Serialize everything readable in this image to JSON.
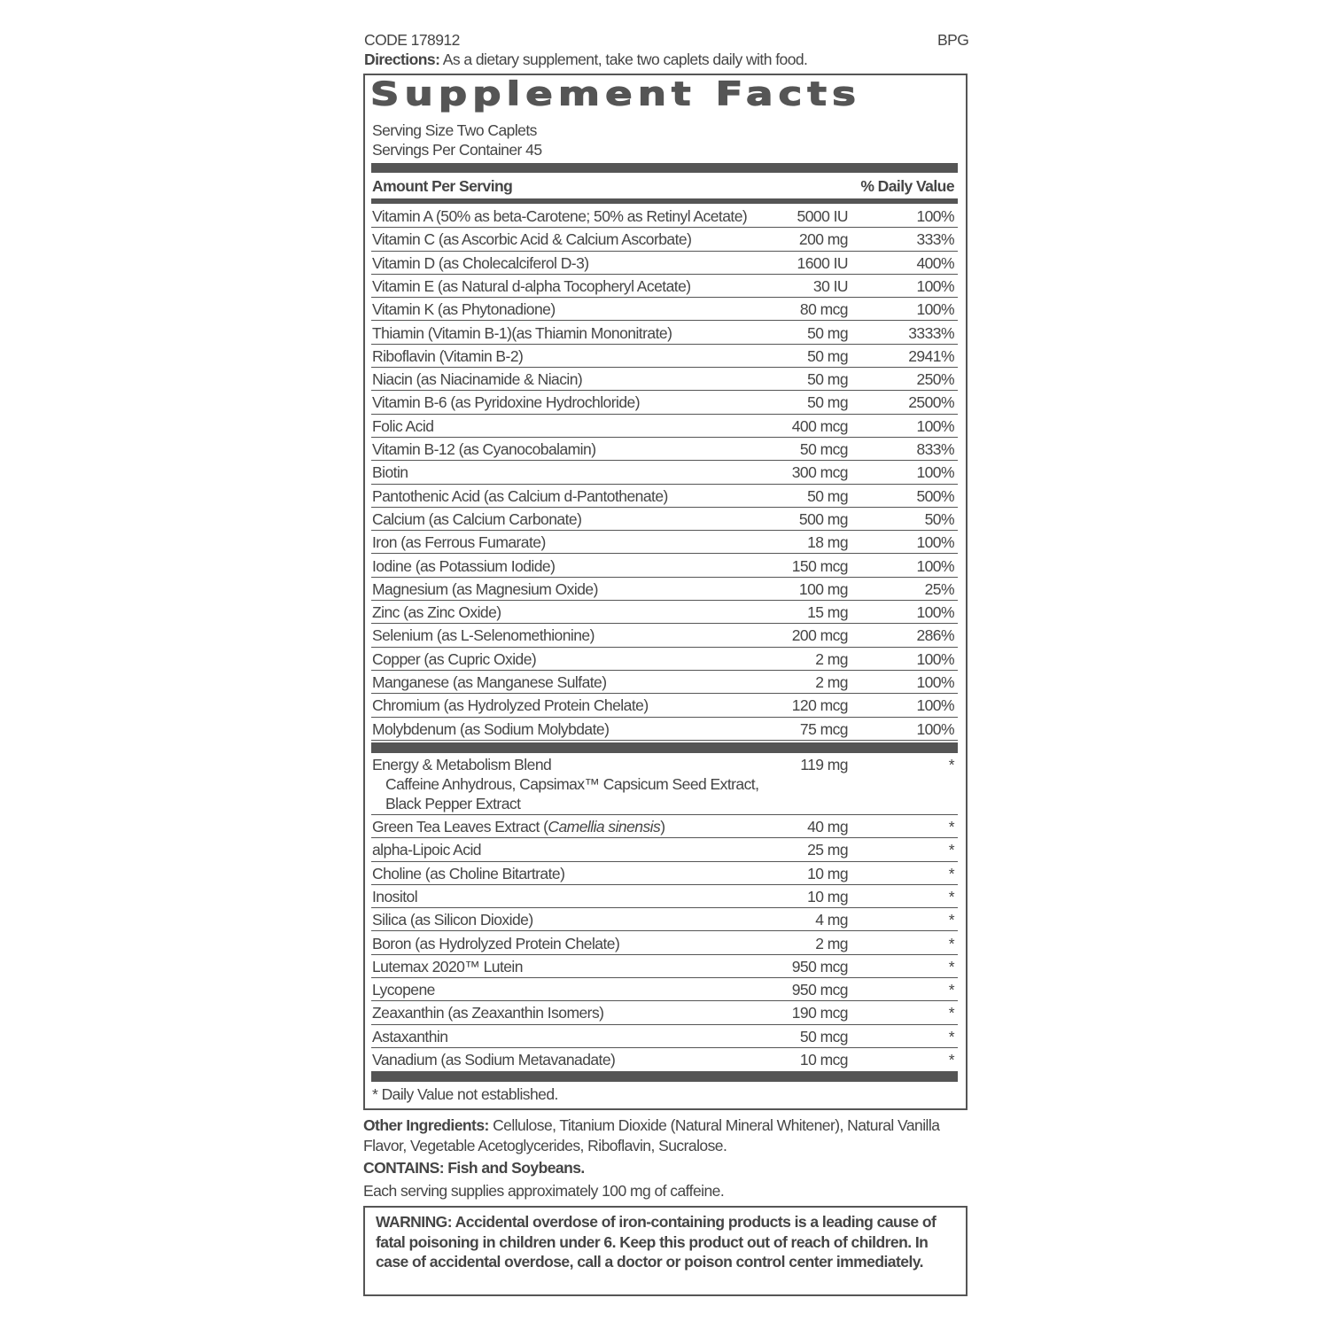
{
  "header": {
    "code": "CODE 178912",
    "brand_code": "BPG",
    "directions_label": "Directions:",
    "directions": " As a dietary supplement, take two caplets daily with food."
  },
  "facts": {
    "title": "Supplement Facts",
    "serving_size": "Serving Size Two Caplets",
    "servings_per_container": "Servings Per Container 45",
    "col_amount": "Amount Per Serving",
    "col_dv": "% Daily Value",
    "vitamins": [
      {
        "name": "Vitamin A (50% as beta-Carotene; 50% as Retinyl Acetate)",
        "amount": "5000 IU",
        "dv": "100%"
      },
      {
        "name": "Vitamin C (as Ascorbic Acid & Calcium Ascorbate)",
        "amount": "200 mg",
        "dv": "333%"
      },
      {
        "name": "Vitamin D (as Cholecalciferol D-3)",
        "amount": "1600 IU",
        "dv": "400%"
      },
      {
        "name": "Vitamin E (as Natural d-alpha Tocopheryl Acetate)",
        "amount": "30 IU",
        "dv": "100%"
      },
      {
        "name": "Vitamin K (as Phytonadione)",
        "amount": "80 mcg",
        "dv": "100%"
      },
      {
        "name": "Thiamin (Vitamin B-1)(as Thiamin Mononitrate)",
        "amount": "50 mg",
        "dv": "3333%"
      },
      {
        "name": "Riboflavin (Vitamin B-2)",
        "amount": "50 mg",
        "dv": "2941%"
      },
      {
        "name": "Niacin (as Niacinamide & Niacin)",
        "amount": "50 mg",
        "dv": "250%"
      },
      {
        "name": "Vitamin B-6 (as Pyridoxine Hydrochloride)",
        "amount": "50 mg",
        "dv": "2500%"
      },
      {
        "name": "Folic Acid",
        "amount": "400 mcg",
        "dv": "100%"
      },
      {
        "name": "Vitamin B-12 (as Cyanocobalamin)",
        "amount": "50 mcg",
        "dv": "833%"
      },
      {
        "name": "Biotin",
        "amount": "300 mcg",
        "dv": "100%"
      },
      {
        "name": "Pantothenic Acid (as Calcium d-Pantothenate)",
        "amount": "50 mg",
        "dv": "500%"
      },
      {
        "name": "Calcium (as Calcium Carbonate)",
        "amount": "500 mg",
        "dv": "50%"
      },
      {
        "name": "Iron (as Ferrous Fumarate)",
        "amount": "18 mg",
        "dv": "100%"
      },
      {
        "name": "Iodine (as Potassium Iodide)",
        "amount": "150 mcg",
        "dv": "100%"
      },
      {
        "name": "Magnesium (as Magnesium Oxide)",
        "amount": "100 mg",
        "dv": "25%"
      },
      {
        "name": "Zinc (as Zinc Oxide)",
        "amount": "15 mg",
        "dv": "100%"
      },
      {
        "name": "Selenium (as L-Selenomethionine)",
        "amount": "200 mcg",
        "dv": "286%"
      },
      {
        "name": "Copper (as Cupric Oxide)",
        "amount": "2 mg",
        "dv": "100%"
      },
      {
        "name": "Manganese (as Manganese Sulfate)",
        "amount": "2 mg",
        "dv": "100%"
      },
      {
        "name": "Chromium (as Hydrolyzed Protein Chelate)",
        "amount": "120 mcg",
        "dv": "100%"
      },
      {
        "name": "Molybdenum (as Sodium Molybdate)",
        "amount": "75 mcg",
        "dv": "100%"
      }
    ],
    "blend": {
      "name": "Energy & Metabolism Blend",
      "amount": "119 mg",
      "dv": "*",
      "line1": "Caffeine Anhydrous, Capsimax™ Capsicum Seed Extract,",
      "line2": "Black Pepper Extract"
    },
    "others": [
      {
        "name": "Green Tea Leaves Extract (",
        "italic": "Camellia sinensis",
        "name_end": ")",
        "amount": "40 mg",
        "dv": "*"
      },
      {
        "name": "alpha-Lipoic Acid",
        "amount": "25 mg",
        "dv": "*"
      },
      {
        "name": "Choline (as Choline Bitartrate)",
        "amount": "10 mg",
        "dv": "*"
      },
      {
        "name": "Inositol",
        "amount": "10 mg",
        "dv": "*"
      },
      {
        "name": "Silica (as Silicon Dioxide)",
        "amount": "4 mg",
        "dv": "*"
      },
      {
        "name": "Boron (as Hydrolyzed Protein Chelate)",
        "amount": "2 mg",
        "dv": "*"
      },
      {
        "name": "Lutemax 2020™ Lutein",
        "amount": "950 mcg",
        "dv": "*"
      },
      {
        "name": "Lycopene",
        "amount": "950 mcg",
        "dv": "*"
      },
      {
        "name": "Zeaxanthin (as Zeaxanthin Isomers)",
        "amount": "190 mcg",
        "dv": "*"
      },
      {
        "name": "Astaxanthin",
        "amount": "50 mcg",
        "dv": "*"
      },
      {
        "name": "Vanadium (as Sodium Metavanadate)",
        "amount": "10 mcg",
        "dv": "*"
      }
    ],
    "footnote": "* Daily Value not established."
  },
  "other_ingredients": {
    "label": "Other Ingredients:",
    "text": " Cellulose, Titanium Dioxide (Natural Mineral Whitener), Natural Vanilla Flavor, Vegetable Acetoglycerides, Riboflavin, Sucralose."
  },
  "contains": "CONTAINS: Fish and Soybeans.",
  "caffeine_note": "Each serving supplies approximately 100 mg of caffeine.",
  "warning": "WARNING: Accidental overdose of iron-containing products is a leading cause of fatal poisoning in children under 6. Keep this product out of reach of children. In case of accidental overdose, call a doctor or poison control center immediately.",
  "colors": {
    "text": "#454545",
    "rule": "#555555"
  }
}
